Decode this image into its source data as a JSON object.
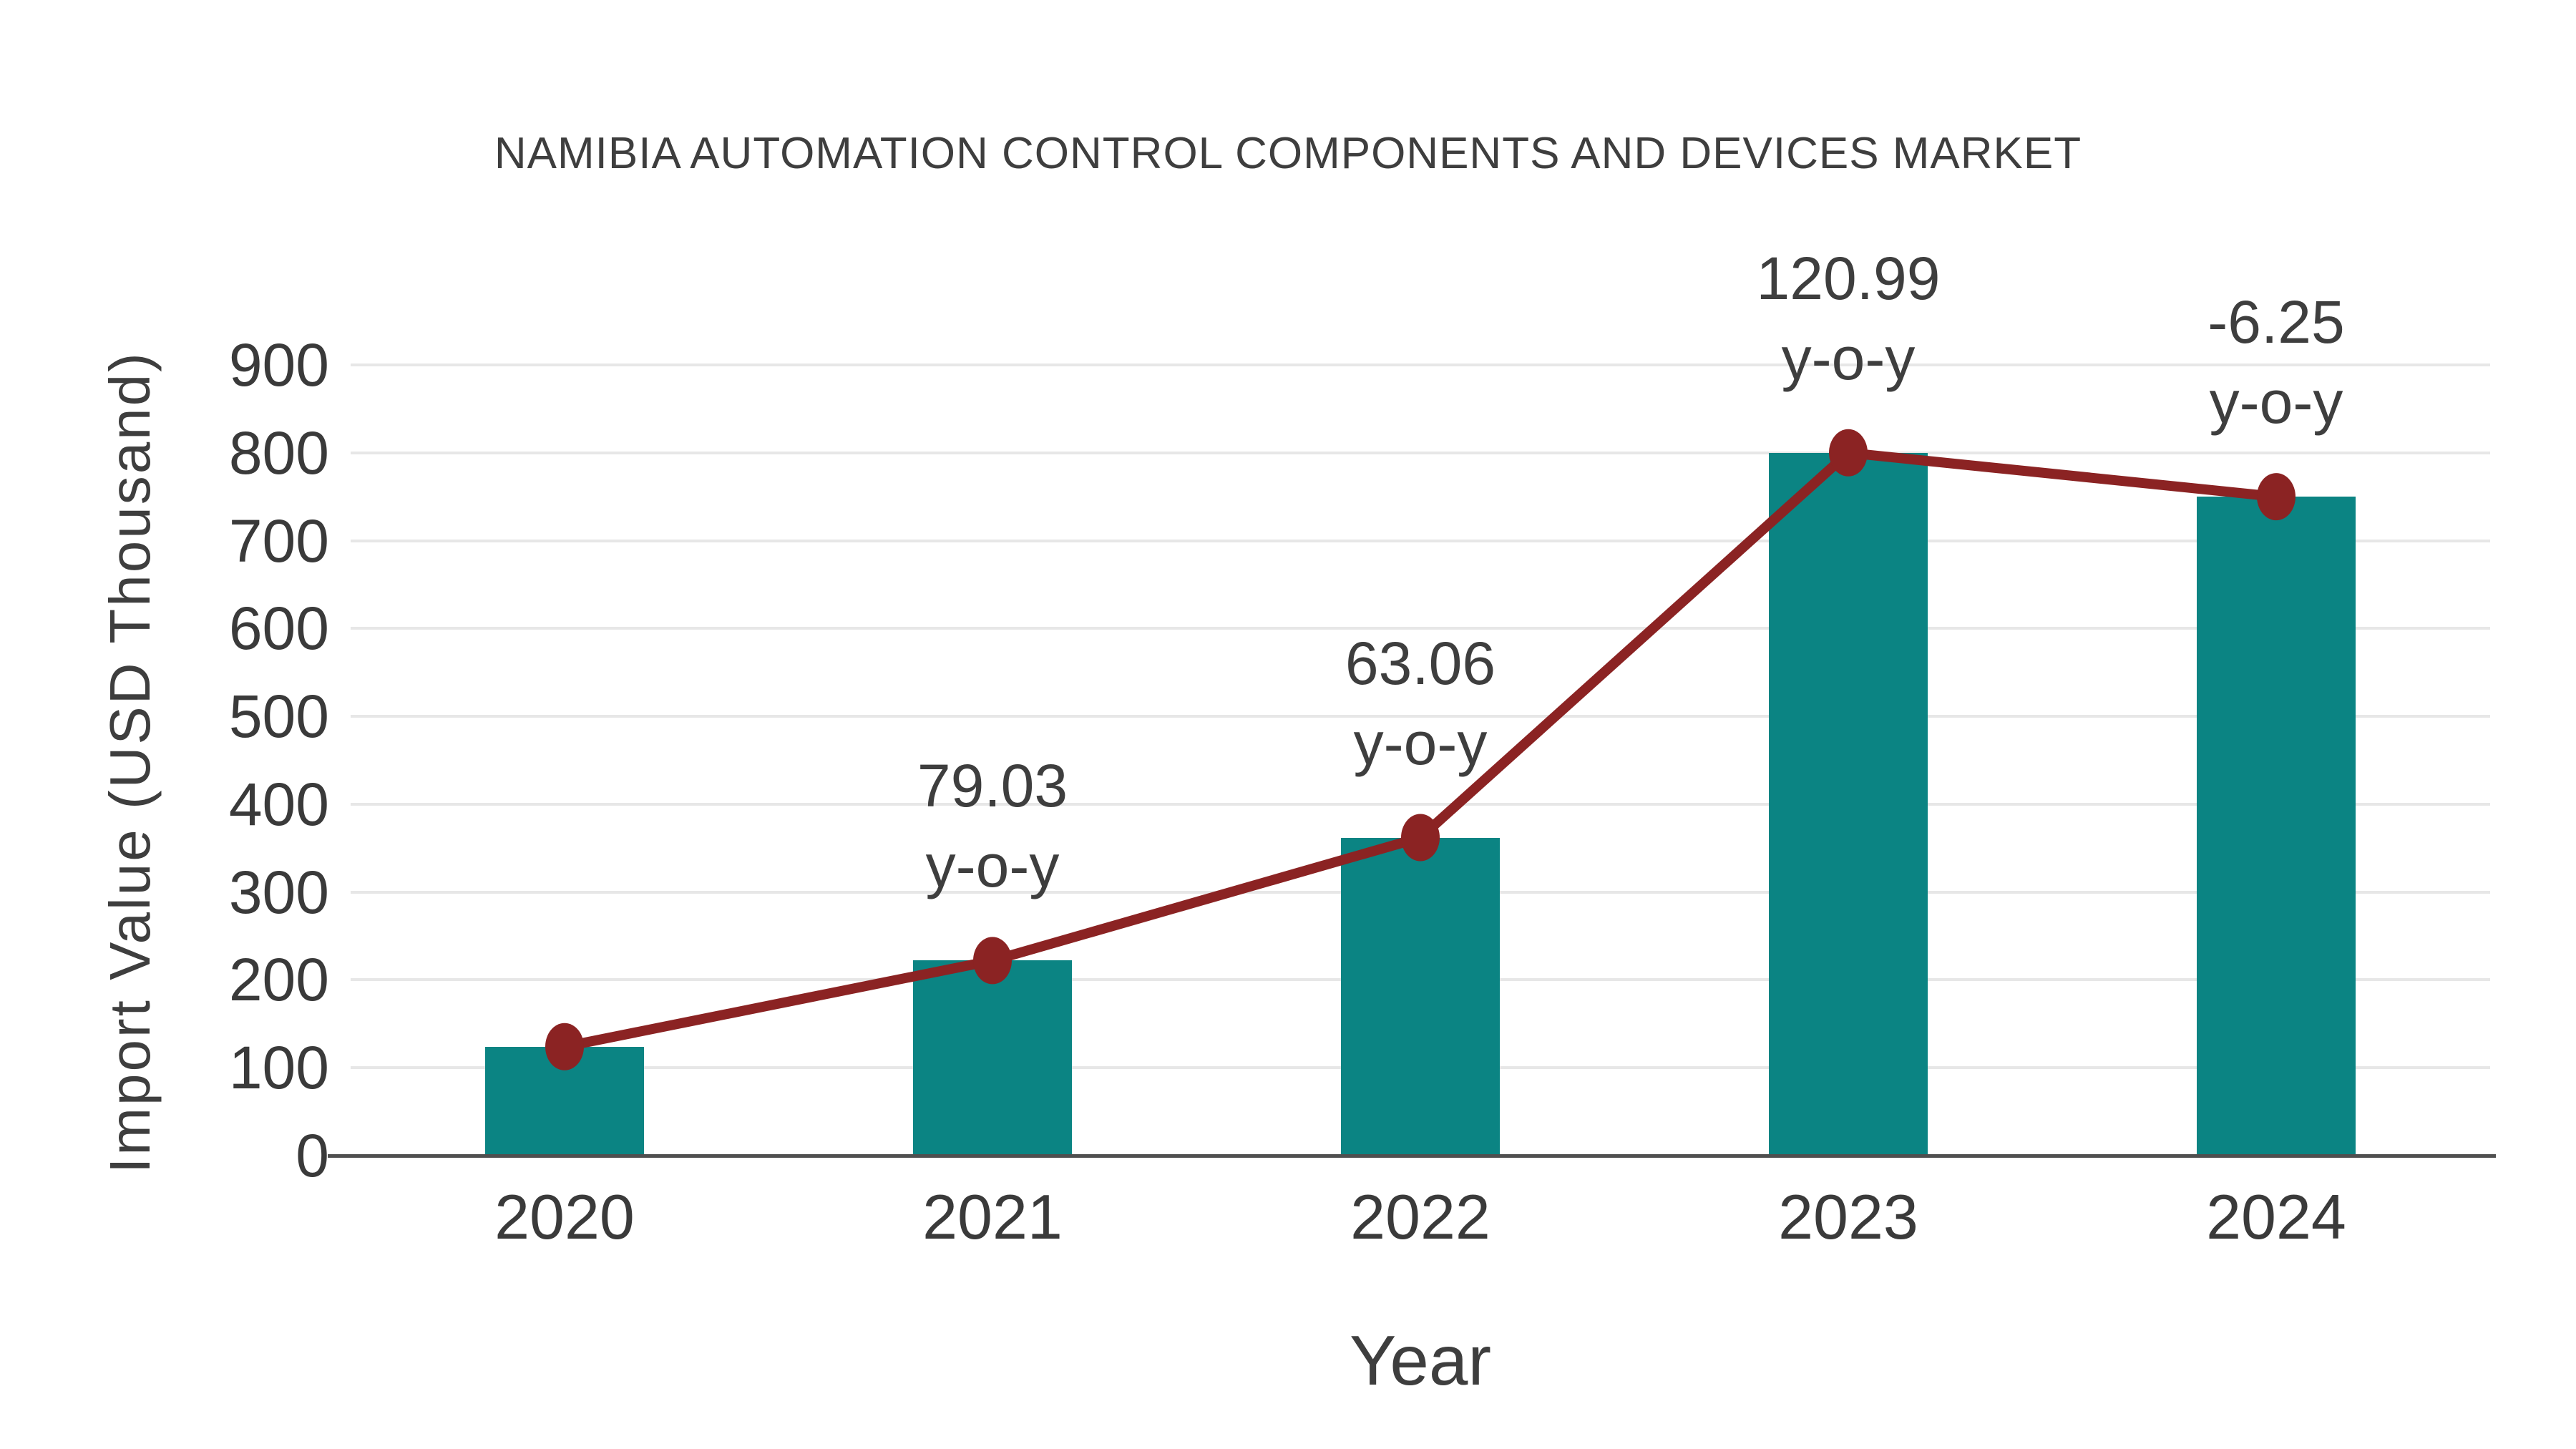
{
  "title": "NAMIBIA AUTOMATION CONTROL COMPONENTS AND DEVICES MARKET",
  "colors": {
    "background": "#ffffff",
    "bar": "#0b8483",
    "line": "#8b2323",
    "marker": "#8b2323",
    "grid": "#e7e7e7",
    "axis": "#4f4f4f",
    "text": "#3e3e3e"
  },
  "chart_data": {
    "type": "bar",
    "title": "NAMIBIA AUTOMATION CONTROL COMPONENTS AND DEVICES MARKET",
    "xlabel": "Year",
    "ylabel": "Import Value (USD Thousand)",
    "categories": [
      "2020",
      "2021",
      "2022",
      "2023",
      "2024"
    ],
    "series": [
      {
        "name": "Import Value (bars)",
        "type": "bar",
        "values": [
          124,
          222,
          362,
          800,
          750
        ]
      },
      {
        "name": "Import Value trend (line)",
        "type": "line",
        "values": [
          124,
          222,
          362,
          800,
          750
        ]
      }
    ],
    "annotations": [
      {
        "category": "2021",
        "value_label": "79.03",
        "suffix_label": "y-o-y"
      },
      {
        "category": "2022",
        "value_label": "63.06",
        "suffix_label": "y-o-y"
      },
      {
        "category": "2023",
        "value_label": "120.99",
        "suffix_label": "y-o-y"
      },
      {
        "category": "2024",
        "value_label": "-6.25",
        "suffix_label": "y-o-y"
      }
    ],
    "yticks": [
      0,
      100,
      200,
      300,
      400,
      500,
      600,
      700,
      800,
      900
    ],
    "ylim": [
      0,
      900
    ],
    "grid": "horizontal-only",
    "legend_position": "none"
  }
}
